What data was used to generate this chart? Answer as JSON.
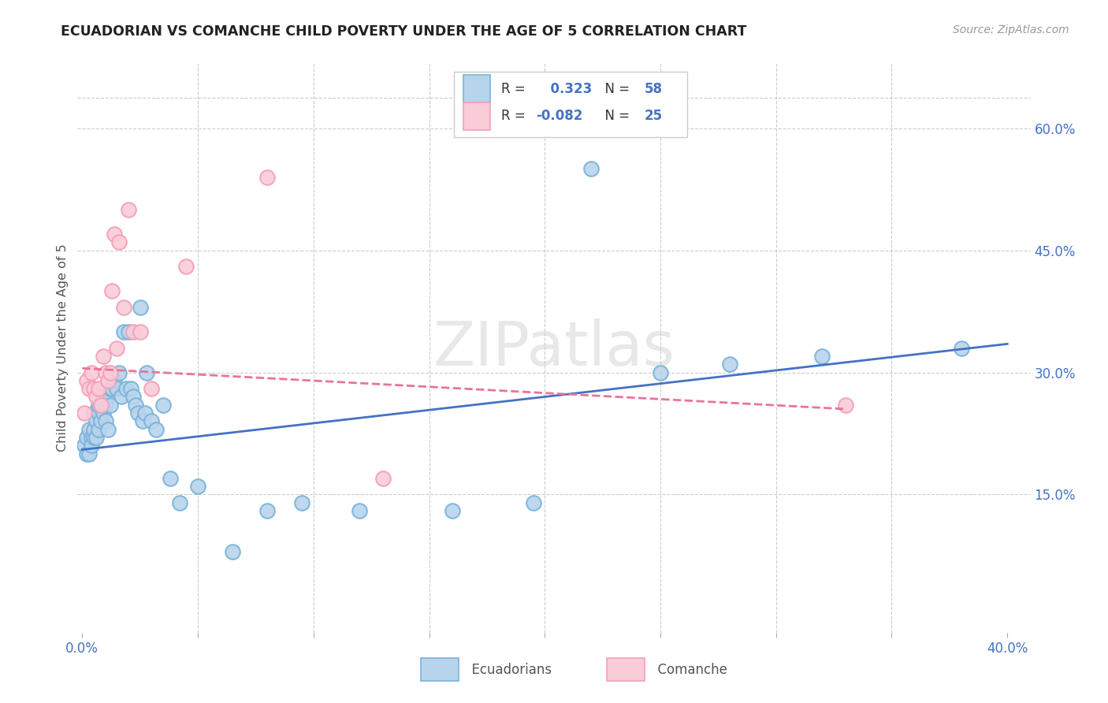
{
  "title": "ECUADORIAN VS COMANCHE CHILD POVERTY UNDER THE AGE OF 5 CORRELATION CHART",
  "source": "Source: ZipAtlas.com",
  "ylabel": "Child Poverty Under the Age of 5",
  "xlim": [
    -0.002,
    0.41
  ],
  "ylim": [
    -0.02,
    0.68
  ],
  "xtick_vals": [
    0.0,
    0.05,
    0.1,
    0.15,
    0.2,
    0.25,
    0.3,
    0.35,
    0.4
  ],
  "xtick_labels": [
    "0.0%",
    "",
    "",
    "",
    "",
    "",
    "",
    "",
    "40.0%"
  ],
  "ytick_vals": [
    0.0,
    0.15,
    0.3,
    0.45,
    0.6
  ],
  "ytick_labels": [
    "",
    "15.0%",
    "30.0%",
    "45.0%",
    "60.0%"
  ],
  "blue_R": 0.323,
  "blue_N": 58,
  "pink_R": -0.082,
  "pink_N": 25,
  "blue_edge": "#7ab3d9",
  "blue_face": "#b8d4ed",
  "pink_edge": "#f4a0b8",
  "pink_face": "#f9ccd8",
  "line_blue": "#4472c4",
  "line_pink": "#e8749a",
  "watermark": "ZIPatlas",
  "blue_x": [
    0.001,
    0.002,
    0.002,
    0.003,
    0.003,
    0.004,
    0.004,
    0.005,
    0.005,
    0.005,
    0.006,
    0.006,
    0.007,
    0.007,
    0.007,
    0.008,
    0.008,
    0.009,
    0.009,
    0.01,
    0.01,
    0.011,
    0.011,
    0.012,
    0.012,
    0.013,
    0.014,
    0.015,
    0.016,
    0.017,
    0.018,
    0.019,
    0.02,
    0.021,
    0.022,
    0.023,
    0.024,
    0.025,
    0.026,
    0.027,
    0.028,
    0.03,
    0.032,
    0.035,
    0.038,
    0.042,
    0.05,
    0.065,
    0.08,
    0.095,
    0.12,
    0.16,
    0.195,
    0.22,
    0.25,
    0.28,
    0.32,
    0.38
  ],
  "blue_y": [
    0.21,
    0.22,
    0.2,
    0.2,
    0.23,
    0.22,
    0.21,
    0.22,
    0.23,
    0.25,
    0.22,
    0.24,
    0.23,
    0.25,
    0.26,
    0.24,
    0.26,
    0.25,
    0.27,
    0.24,
    0.26,
    0.23,
    0.27,
    0.26,
    0.28,
    0.28,
    0.29,
    0.28,
    0.3,
    0.27,
    0.35,
    0.28,
    0.35,
    0.28,
    0.27,
    0.26,
    0.25,
    0.38,
    0.24,
    0.25,
    0.3,
    0.24,
    0.23,
    0.26,
    0.17,
    0.14,
    0.16,
    0.08,
    0.13,
    0.14,
    0.13,
    0.13,
    0.14,
    0.55,
    0.3,
    0.31,
    0.32,
    0.33
  ],
  "pink_x": [
    0.001,
    0.002,
    0.003,
    0.004,
    0.005,
    0.006,
    0.007,
    0.008,
    0.009,
    0.01,
    0.011,
    0.012,
    0.013,
    0.014,
    0.015,
    0.016,
    0.018,
    0.02,
    0.022,
    0.025,
    0.03,
    0.045,
    0.08,
    0.13,
    0.33
  ],
  "pink_y": [
    0.25,
    0.29,
    0.28,
    0.3,
    0.28,
    0.27,
    0.28,
    0.26,
    0.32,
    0.3,
    0.29,
    0.3,
    0.4,
    0.47,
    0.33,
    0.46,
    0.38,
    0.5,
    0.35,
    0.35,
    0.28,
    0.43,
    0.54,
    0.17,
    0.26
  ],
  "blue_line_x": [
    0.0,
    0.4
  ],
  "blue_line_y": [
    0.205,
    0.335
  ],
  "pink_line_x": [
    0.0,
    0.33
  ],
  "pink_line_y": [
    0.305,
    0.255
  ]
}
